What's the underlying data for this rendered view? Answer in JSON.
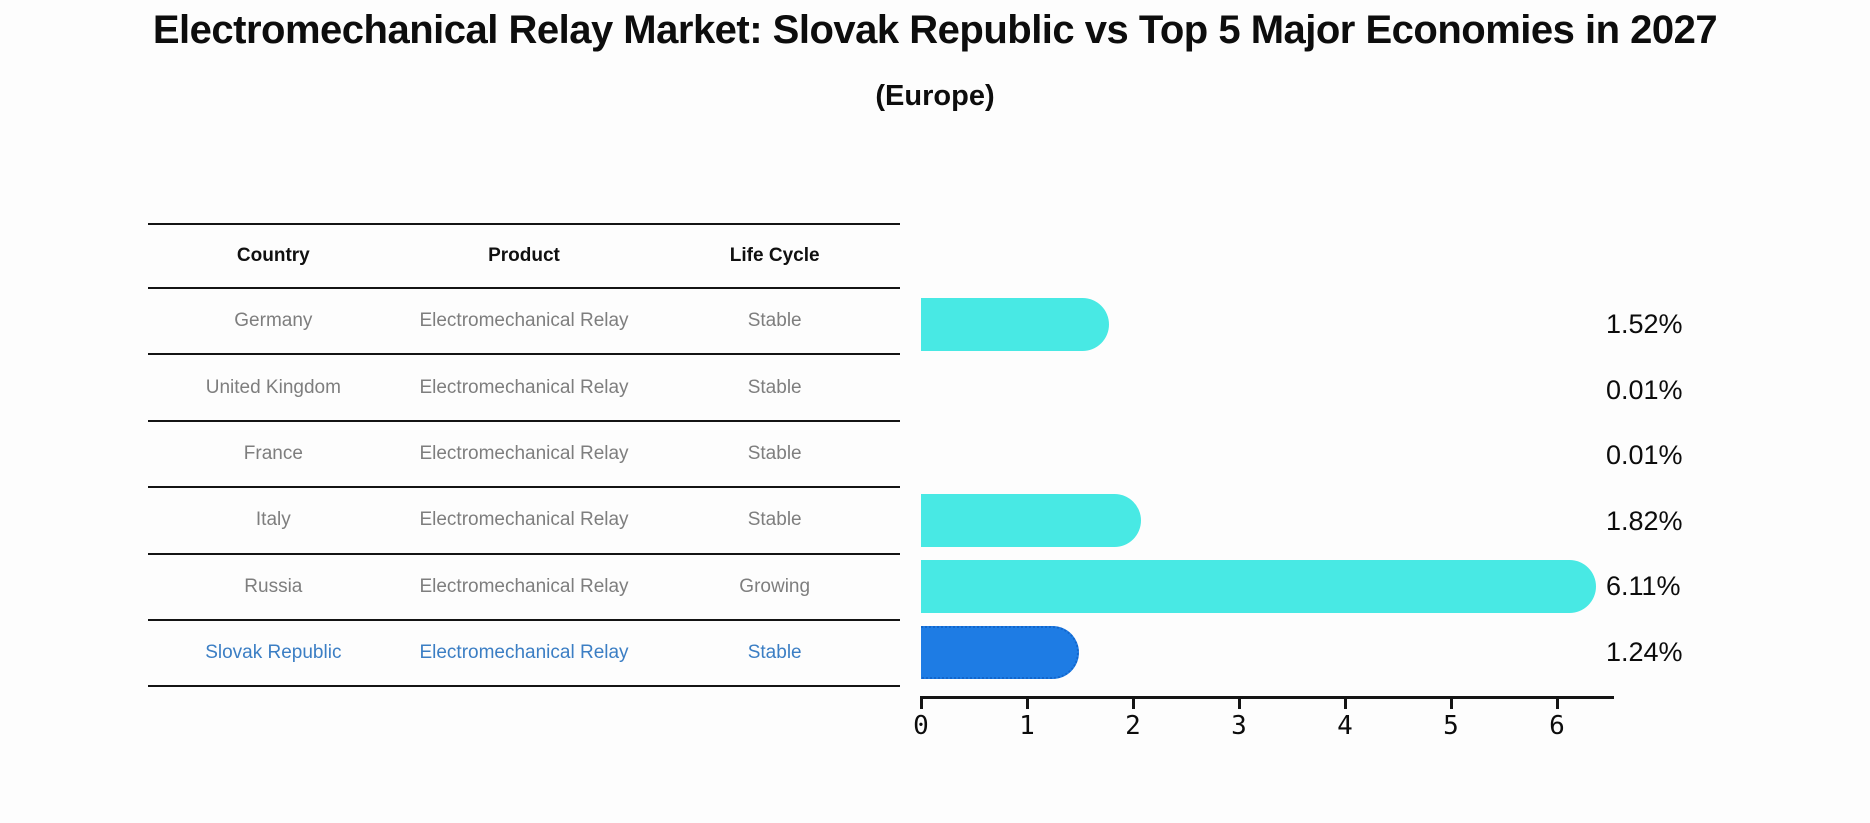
{
  "title": "Electromechanical Relay Market: Slovak Republic vs Top 5 Major Economies in 2027",
  "subtitle": "(Europe)",
  "table": {
    "columns": [
      "Country",
      "Product",
      "Life Cycle"
    ],
    "rows": [
      {
        "country": "Germany",
        "product": "Electromechanical Relay",
        "life_cycle": "Stable",
        "highlight": false
      },
      {
        "country": "United Kingdom",
        "product": "Electromechanical Relay",
        "life_cycle": "Stable",
        "highlight": false
      },
      {
        "country": "France",
        "product": "Electromechanical Relay",
        "life_cycle": "Stable",
        "highlight": false
      },
      {
        "country": "Italy",
        "product": "Electromechanical Relay",
        "life_cycle": "Stable",
        "highlight": false
      },
      {
        "country": "Russia",
        "product": "Electromechanical Relay",
        "life_cycle": "Growing",
        "highlight": false
      },
      {
        "country": "Slovak Republic",
        "product": "Electromechanical Relay",
        "life_cycle": "Stable",
        "highlight": true
      }
    ]
  },
  "chart_data": {
    "type": "bar",
    "orientation": "horizontal",
    "title": "Electromechanical Relay Market: Slovak Republic vs Top 5 Major Economies in 2027",
    "subtitle": "(Europe)",
    "categories": [
      "Germany",
      "United Kingdom",
      "France",
      "Italy",
      "Russia",
      "Slovak Republic"
    ],
    "values": [
      1.52,
      0.01,
      0.01,
      1.82,
      6.11,
      1.24
    ],
    "value_labels": [
      "1.52%",
      "0.01%",
      "0.01%",
      "1.82%",
      "6.11%",
      "1.24%"
    ],
    "x_ticks": [
      0,
      1,
      2,
      3,
      4,
      5,
      6
    ],
    "xlim": [
      0,
      6.45
    ],
    "xlabel": "",
    "ylabel": "",
    "grid": false,
    "legend": false,
    "highlight_index": 5
  },
  "colors": {
    "bar": "#48e9e4",
    "highlight_bar": "#1e7ce4",
    "highlight_border": "#1266cc",
    "highlight_text": "#3b7ec4",
    "table_text": "#7e7e7e",
    "line": "#141414"
  }
}
